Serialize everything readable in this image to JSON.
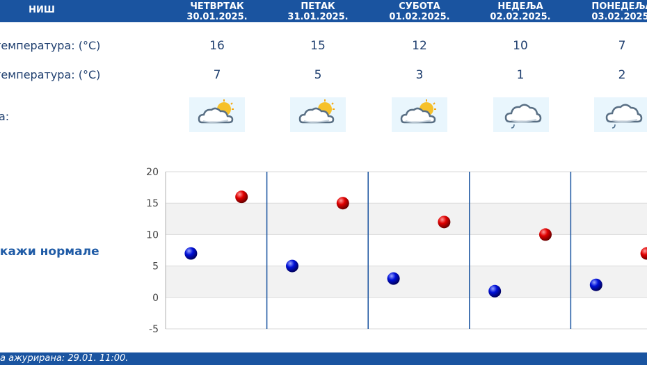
{
  "header": {
    "city": "НИШ",
    "days": [
      {
        "name": "ЧЕТВРТАК",
        "date": "30.01.2025."
      },
      {
        "name": "ПЕТАК",
        "date": "31.01.2025."
      },
      {
        "name": "СУБОТА",
        "date": "01.02.2025."
      },
      {
        "name": "НЕДЕЉА",
        "date": "02.02.2025."
      },
      {
        "name": "ПОНЕДЕЉА",
        "date": "03.02.2025."
      }
    ]
  },
  "rows": {
    "max_label": "температура: (°C)",
    "min_label": "температура: (°C)",
    "weather_label": "а:",
    "max_values": [
      "16",
      "15",
      "12",
      "10",
      "7"
    ],
    "min_values": [
      "7",
      "5",
      "3",
      "1",
      "2"
    ],
    "icons": [
      "partly-cloudy-sun-icon",
      "partly-cloudy-sun-icon",
      "partly-cloudy-sun-icon",
      "cloud-drizzle-icon",
      "cloud-drizzle-icon"
    ]
  },
  "normals_link": "икажи нормале",
  "footer": {
    "updated_text": "а ажурирана:  29.01. 11:00."
  },
  "colors": {
    "header_bg": "#1a54a0",
    "max_point": "#cc0000",
    "min_point": "#0000cc",
    "text": "#1f3f6f"
  },
  "chart_data": {
    "type": "scatter",
    "categories": [
      "30.01.2025.",
      "31.01.2025.",
      "01.02.2025.",
      "02.02.2025.",
      "03.02.2025."
    ],
    "series": [
      {
        "values": [
          16,
          15,
          12,
          10,
          7
        ],
        "color": "#cc0000"
      },
      {
        "values": [
          7,
          5,
          3,
          1,
          2
        ],
        "color": "#0000cc"
      }
    ],
    "yticks": [
      "20",
      "15",
      "10",
      "5",
      "0",
      "-5"
    ],
    "ylim": [
      -5,
      20
    ],
    "grid": true
  }
}
